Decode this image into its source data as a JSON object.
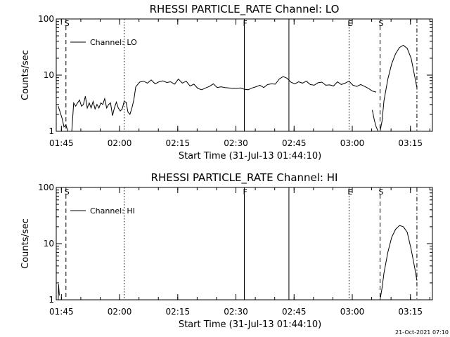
{
  "footer": {
    "timestamp": "21-Oct-2021 07:10"
  },
  "chart_data": [
    {
      "type": "line",
      "title": "RHESSI PARTICLE_RATE Channel: LO",
      "xlabel": "Start Time (31-Jul-13 01:44:10)",
      "ylabel": "Counts/sec",
      "yscale": "log",
      "ylim": [
        1,
        100
      ],
      "xlim_minutes": [
        -0.5,
        96.5
      ],
      "xticks": [
        "01:45",
        "02:00",
        "02:15",
        "02:30",
        "02:45",
        "03:00",
        "03:15"
      ],
      "yticks": [
        "1",
        "10",
        "100"
      ],
      "legend": "Channel: LO",
      "legend_placement": "top-left",
      "event_markers": [
        {
          "label": "S",
          "minute": 2,
          "style": "dashed"
        },
        {
          "label": "",
          "minute": 17,
          "style": "dotted"
        },
        {
          "label": "F",
          "minute": 48,
          "style": "solid"
        },
        {
          "label": "",
          "minute": 59.5,
          "style": "solid"
        },
        {
          "label": "E",
          "minute": 75,
          "style": "dotted"
        },
        {
          "label": "S",
          "minute": 83,
          "style": "dashed"
        },
        {
          "label": "",
          "minute": 92.5,
          "style": "dashdot"
        }
      ],
      "series": [
        {
          "segments": [
            {
              "x": [
                0,
                0.5,
                1,
                1.5,
                2,
                2.5,
                3,
                3.5,
                4,
                4.5,
                5,
                5.5,
                6,
                6.5,
                7,
                7.5,
                8,
                8.5,
                9,
                9.5,
                10,
                10.5,
                11,
                11.5,
                12,
                12.5,
                13,
                13.5,
                14,
                14.5,
                15,
                15.5,
                16,
                16.5,
                17,
                17.5,
                18,
                18.5,
                19,
                19.5,
                20,
                21,
                22,
                23,
                24,
                25,
                26,
                27,
                28,
                29,
                30,
                31,
                32,
                33,
                34,
                35,
                36,
                37,
                38,
                39,
                40,
                41,
                42,
                43,
                44,
                45,
                46,
                47,
                48,
                49,
                50,
                51,
                52,
                53,
                54,
                55,
                56,
                57,
                58,
                59,
                60,
                61,
                62,
                63,
                64,
                65,
                66,
                67,
                68,
                69,
                70,
                71,
                72,
                73,
                74,
                75,
                76,
                77,
                78,
                79,
                80,
                81,
                82
              ],
              "y": [
                2.8,
                2.2,
                1.7,
                1.2,
                1.3,
                1.0,
                1.0,
                1.0,
                3.2,
                2.8,
                3.2,
                3.6,
                2.8,
                3.0,
                4.2,
                2.6,
                3.2,
                2.6,
                3.4,
                2.5,
                3.0,
                2.6,
                3.2,
                3.0,
                3.8,
                2.6,
                3.0,
                3.2,
                1.9,
                2.6,
                3.3,
                2.6,
                2.3,
                2.5,
                3.4,
                3.3,
                2.2,
                2.0,
                2.6,
                3.6,
                6.2,
                7.5,
                7.8,
                7.2,
                8.2,
                7.0,
                7.6,
                7.9,
                7.4,
                7.6,
                6.9,
                8.5,
                7.2,
                7.8,
                6.4,
                6.9,
                5.8,
                5.5,
                5.9,
                6.3,
                7.0,
                6.0,
                6.2,
                6.0,
                5.9,
                5.8,
                5.8,
                5.9,
                5.6,
                5.5,
                5.9,
                6.2,
                6.6,
                6.0,
                6.8,
                7.0,
                6.9,
                8.5,
                9.4,
                8.8,
                7.5,
                7.0,
                7.6,
                7.2,
                7.8,
                6.8,
                6.6,
                7.3,
                7.5,
                6.6,
                6.7,
                6.4,
                7.6,
                6.8,
                7.2,
                7.8,
                6.6,
                6.3,
                6.8,
                6.3,
                5.8,
                5.2,
                5.0
              ],
              "note": ""
            },
            {
              "x": [
                81,
                81.5,
                82,
                82.5,
                83,
                83.5,
                84,
                85,
                86,
                87,
                88,
                89,
                90,
                91,
                92,
                92.5
              ],
              "y": [
                2.4,
                1.6,
                1.2,
                1.0,
                1.0,
                1.5,
                3.5,
                8.5,
                16,
                24,
                31,
                34,
                30,
                20,
                9,
                6
              ],
              "note": ""
            }
          ]
        }
      ]
    },
    {
      "type": "line",
      "title": "RHESSI PARTICLE_RATE Channel: HI",
      "xlabel": "Start Time (31-Jul-13 01:44:10)",
      "ylabel": "Counts/sec",
      "yscale": "log",
      "ylim": [
        1,
        100
      ],
      "xlim_minutes": [
        -0.5,
        96.5
      ],
      "xticks": [
        "01:45",
        "02:00",
        "02:15",
        "02:30",
        "02:45",
        "03:00",
        "03:15"
      ],
      "yticks": [
        "1",
        "10",
        "100"
      ],
      "legend": "Channel: HI",
      "legend_placement": "top-left",
      "event_markers": [
        {
          "label": "S",
          "minute": 2,
          "style": "dashed"
        },
        {
          "label": "",
          "minute": 17,
          "style": "dotted"
        },
        {
          "label": "F",
          "minute": 48,
          "style": "solid"
        },
        {
          "label": "",
          "minute": 59.5,
          "style": "solid"
        },
        {
          "label": "E",
          "minute": 75,
          "style": "dotted"
        },
        {
          "label": "S",
          "minute": 83,
          "style": "dashed"
        },
        {
          "label": "",
          "minute": 92.5,
          "style": "dashdot"
        }
      ],
      "series": [
        {
          "segments": [
            {
              "x": [
                0,
                0.1,
                0.3
              ],
              "y": [
                1.0,
                1.9,
                1.2
              ],
              "note": ""
            },
            {
              "x": [
                83,
                83.5,
                84,
                85,
                86,
                87,
                88,
                89,
                90,
                91,
                92,
                92.5
              ],
              "y": [
                1.0,
                1.6,
                3.0,
                7.0,
                13,
                18,
                21,
                20,
                16,
                8,
                3.5,
                2.2
              ],
              "note": ""
            }
          ]
        }
      ]
    }
  ]
}
